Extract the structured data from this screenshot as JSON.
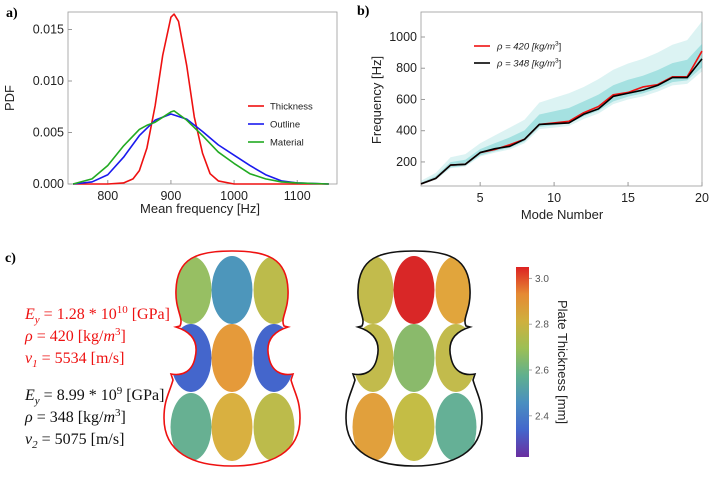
{
  "panel_labels": {
    "a": "a)",
    "b": "b)",
    "c": "c)"
  },
  "chart_data": [
    {
      "type": "line",
      "title": "",
      "xlabel": "Mean frequency [Hz]",
      "ylabel": "PDF",
      "xlim": [
        737,
        1163
      ],
      "ylim": [
        0,
        0.0167
      ],
      "xticks": [
        800,
        900,
        1000,
        1100
      ],
      "yticks": [
        "0.000",
        "0.005",
        "0.010",
        "0.015"
      ],
      "grid": true,
      "legend_position": "right-middle",
      "series": [
        {
          "name": "Thickness",
          "color": "#ee1111",
          "x": [
            745,
            800,
            825,
            840,
            850,
            862,
            875,
            887,
            900,
            905,
            912,
            925,
            937,
            950,
            962,
            975,
            1000,
            1150
          ],
          "y": [
            0,
            0,
            0.0001,
            0.0005,
            0.0013,
            0.0035,
            0.0076,
            0.0125,
            0.0162,
            0.0165,
            0.0158,
            0.0115,
            0.0065,
            0.003,
            0.001,
            0.0003,
            0,
            0
          ]
        },
        {
          "name": "Outline",
          "color": "#1a1aee",
          "x": [
            745,
            775,
            800,
            825,
            850,
            875,
            900,
            925,
            950,
            975,
            1000,
            1025,
            1050,
            1075,
            1100,
            1150
          ],
          "y": [
            0,
            0.0002,
            0.0009,
            0.0026,
            0.0047,
            0.0062,
            0.0068,
            0.0063,
            0.0051,
            0.0038,
            0.0028,
            0.0018,
            0.0009,
            0.0003,
            0.0001,
            0
          ]
        },
        {
          "name": "Material",
          "color": "#22aa22",
          "x": [
            745,
            775,
            800,
            825,
            850,
            862,
            875,
            900,
            905,
            925,
            950,
            975,
            1000,
            1025,
            1050,
            1075,
            1100,
            1150
          ],
          "y": [
            0,
            0.0005,
            0.0018,
            0.0037,
            0.0053,
            0.0057,
            0.006,
            0.007,
            0.0071,
            0.0062,
            0.0047,
            0.0031,
            0.002,
            0.001,
            0.0005,
            0.0002,
            0.0001,
            0
          ]
        }
      ]
    },
    {
      "type": "line",
      "title": "",
      "xlabel": "Mode Number",
      "ylabel": "Frequency [Hz]",
      "xlim": [
        1,
        20
      ],
      "ylim": [
        46,
        1160
      ],
      "xticks": [
        5,
        10,
        15,
        20
      ],
      "yticks": [
        200,
        400,
        600,
        800,
        1000
      ],
      "grid": true,
      "legend_position": "top-left",
      "x": [
        1,
        2,
        3,
        4,
        5,
        6,
        7,
        8,
        9,
        10,
        11,
        12,
        13,
        14,
        15,
        16,
        17,
        18,
        19,
        20
      ],
      "band": {
        "color": "#3fbfbf",
        "lower": [
          52,
          85,
          160,
          170,
          235,
          260,
          280,
          320,
          410,
          420,
          430,
          475,
          510,
          570,
          600,
          620,
          650,
          690,
          700,
          780
        ],
        "upper": [
          80,
          130,
          230,
          250,
          320,
          370,
          420,
          470,
          580,
          610,
          640,
          680,
          730,
          790,
          830,
          860,
          900,
          950,
          980,
          1100
        ]
      },
      "series": [
        {
          "name": "ρ = 420 [kg/m³]",
          "legend_text": "ρ = 420 [kg/m",
          "legend_sup": "3",
          "legend_tail": "]",
          "color": "#ee1111",
          "y": [
            60,
            95,
            180,
            185,
            260,
            280,
            310,
            345,
            440,
            450,
            460,
            515,
            555,
            630,
            645,
            680,
            695,
            745,
            745,
            910
          ]
        },
        {
          "name": "ρ = 348 [kg/m³]",
          "legend_text": "ρ = 348 [kg/m",
          "legend_sup": "3",
          "legend_tail": "]",
          "color": "#000000",
          "y": [
            60,
            95,
            180,
            185,
            260,
            285,
            300,
            345,
            440,
            445,
            450,
            505,
            540,
            620,
            640,
            660,
            690,
            740,
            740,
            860
          ]
        }
      ]
    }
  ],
  "panel_c": {
    "red_params": {
      "color": "#ee1111",
      "lines": [
        {
          "lhs": "E",
          "sub": "y",
          "eq": " = 1.28 * 10",
          "sup": "10",
          "tail": " [GPa]"
        },
        {
          "lhs": "ρ",
          "sub": "",
          "eq": " = 420 [kg/",
          "sup": "3",
          "tail": "]",
          "unit_m": "m"
        },
        {
          "lhs": "ν",
          "sub": "1",
          "eq": " = 5534 [m/s]",
          "sup": "",
          "tail": ""
        }
      ]
    },
    "black_params": {
      "color": "#111111",
      "lines": [
        {
          "lhs": "E",
          "sub": "y",
          "eq": " = 8.99 * 10",
          "sup": "9",
          "tail": " [GPa]"
        },
        {
          "lhs": "ρ",
          "sub": "",
          "eq": " = 348 [kg/",
          "sup": "3",
          "tail": "]",
          "unit_m": "m"
        },
        {
          "lhs": "ν",
          "sub": "2",
          "eq": " = 5075 [m/s]",
          "sup": "",
          "tail": ""
        }
      ]
    },
    "plates": [
      {
        "name": "red-plate",
        "outline": "#ee1111",
        "patch_colors": [
          [
            "#97bf63",
            "#4d96bb",
            "#bcbb4b"
          ],
          [
            "#4466cc",
            "#e59a3a",
            "#4466cc"
          ],
          [
            "#67b092",
            "#d9b040",
            "#bcbb4b"
          ]
        ]
      },
      {
        "name": "black-plate",
        "outline": "#111111",
        "patch_colors": [
          [
            "#c2bb4c",
            "#d92727",
            "#e1a53c"
          ],
          [
            "#c2bb4c",
            "#8aba6b",
            "#c2bb4c"
          ],
          [
            "#e1a03c",
            "#c4bd45",
            "#65b096"
          ]
        ]
      }
    ],
    "colorbar": {
      "label": "Plate Thickness [mm]",
      "range": [
        2.22,
        3.05
      ],
      "ticks": [
        "3.0",
        "2.8",
        "2.6",
        "2.4"
      ],
      "tick_values": [
        3.0,
        2.8,
        2.6,
        2.4
      ],
      "colors": [
        "#dd2222",
        "#e58a33",
        "#cfb03e",
        "#9cbf55",
        "#5fb08e",
        "#4a8fc0",
        "#4466cc",
        "#6a2ea0"
      ]
    }
  }
}
